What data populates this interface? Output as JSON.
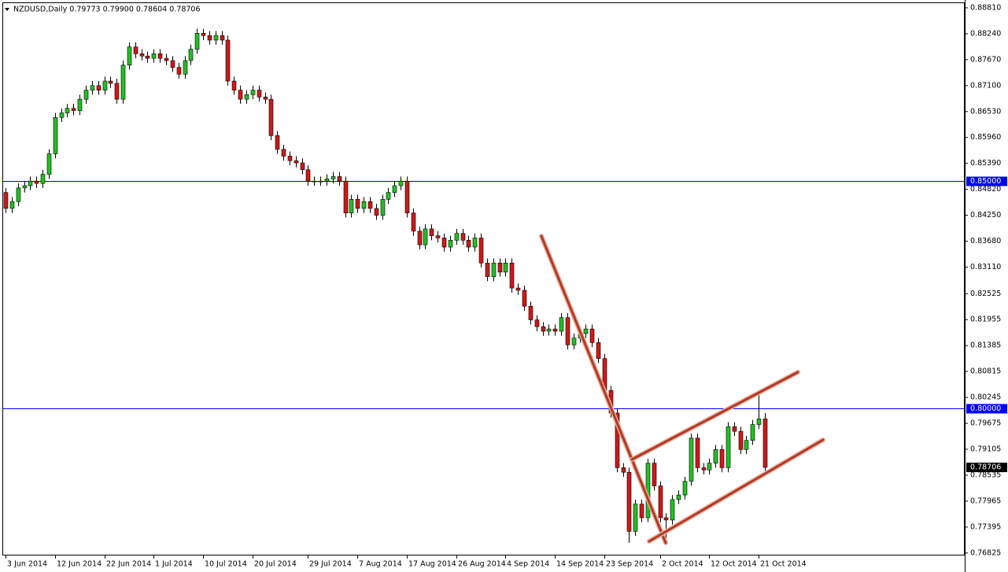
{
  "chart_data": {
    "type": "candlestick",
    "title": "NZDUSD,Daily  0.79773 0.79900 0.78604 0.78706",
    "categories": [
      "3 Jun 2014",
      null,
      null,
      null,
      null,
      null,
      null,
      null,
      "12 Jun 2014",
      null,
      null,
      null,
      null,
      null,
      null,
      null,
      "22 Jun 2014",
      null,
      null,
      null,
      null,
      null,
      null,
      null,
      "1 Jul 2014",
      null,
      null,
      null,
      null,
      null,
      null,
      null,
      "10 Jul 2014",
      null,
      null,
      null,
      null,
      null,
      null,
      null,
      "20 Jul 2014",
      null,
      null,
      null,
      null,
      null,
      null,
      null,
      null,
      "29 Jul 2014",
      null,
      null,
      null,
      null,
      null,
      null,
      null,
      "7 Aug 2014",
      null,
      null,
      null,
      null,
      null,
      null,
      null,
      "17 Aug 2014",
      null,
      null,
      null,
      null,
      null,
      null,
      null,
      "26 Aug 2014",
      null,
      null,
      null,
      null,
      null,
      null,
      null,
      "4 Sep 2014",
      null,
      null,
      null,
      null,
      null,
      null,
      null,
      "14 Sep 2014",
      null,
      null,
      null,
      null,
      null,
      null,
      null,
      "23 Sep 2014",
      null,
      null,
      null,
      null,
      null,
      null,
      null,
      null,
      "2 Oct 2014",
      null,
      null,
      null,
      null,
      null,
      null,
      null,
      "12 Oct 2014",
      null,
      null,
      null,
      null,
      null,
      null,
      null,
      "21 Oct 2014",
      null
    ],
    "open": [
      0.8475,
      0.844,
      0.8455,
      0.8485,
      0.849,
      0.85,
      0.8495,
      0.8515,
      0.856,
      0.864,
      0.865,
      0.866,
      0.8655,
      0.868,
      0.87,
      0.871,
      0.87,
      0.872,
      0.8715,
      0.868,
      0.8755,
      0.8795,
      0.878,
      0.8775,
      0.877,
      0.878,
      0.877,
      0.8765,
      0.875,
      0.8735,
      0.8765,
      0.879,
      0.8825,
      0.882,
      0.881,
      0.882,
      0.881,
      0.872,
      0.87,
      0.868,
      0.869,
      0.87,
      0.8685,
      0.868,
      0.86,
      0.857,
      0.8555,
      0.8545,
      0.854,
      0.8525,
      0.85,
      0.85,
      0.85,
      0.8505,
      0.851,
      0.85,
      0.843,
      0.846,
      0.844,
      0.8455,
      0.844,
      0.8425,
      0.846,
      0.8475,
      0.849,
      0.85,
      0.843,
      0.839,
      0.836,
      0.8395,
      0.838,
      0.8375,
      0.8355,
      0.837,
      0.8385,
      0.837,
      0.8355,
      0.8375,
      0.832,
      0.829,
      0.832,
      0.83,
      0.832,
      0.8265,
      0.826,
      0.8225,
      0.8195,
      0.818,
      0.817,
      0.8175,
      0.817,
      0.82,
      0.814,
      0.8155,
      0.8165,
      0.8175,
      0.8145,
      0.811,
      0.804,
      0.799,
      0.787,
      0.786,
      0.773,
      0.779,
      0.776,
      0.788,
      0.783,
      0.776,
      0.7755,
      0.78,
      0.781,
      0.784,
      0.7935,
      0.787,
      0.7865,
      0.788,
      0.791,
      0.787,
      0.796,
      0.795,
      0.791,
      0.793,
      0.7965,
      0.79773
    ],
    "high": [
      0.8485,
      0.8465,
      0.8495,
      0.85,
      0.851,
      0.851,
      0.8525,
      0.857,
      0.865,
      0.866,
      0.867,
      0.867,
      0.869,
      0.871,
      0.872,
      0.872,
      0.873,
      0.873,
      0.8725,
      0.8765,
      0.8805,
      0.8805,
      0.879,
      0.8785,
      0.879,
      0.879,
      0.878,
      0.8775,
      0.876,
      0.8775,
      0.88,
      0.8835,
      0.8835,
      0.883,
      0.883,
      0.883,
      0.882,
      0.873,
      0.871,
      0.87,
      0.871,
      0.871,
      0.8695,
      0.869,
      0.861,
      0.858,
      0.8565,
      0.8555,
      0.855,
      0.8535,
      0.851,
      0.851,
      0.8515,
      0.852,
      0.852,
      0.851,
      0.847,
      0.847,
      0.8465,
      0.8465,
      0.845,
      0.847,
      0.8485,
      0.85,
      0.851,
      0.851,
      0.844,
      0.84,
      0.8405,
      0.8405,
      0.839,
      0.8385,
      0.838,
      0.8395,
      0.8395,
      0.838,
      0.8385,
      0.8385,
      0.833,
      0.833,
      0.833,
      0.833,
      0.833,
      0.8275,
      0.827,
      0.8235,
      0.8205,
      0.819,
      0.8185,
      0.8185,
      0.821,
      0.821,
      0.8165,
      0.8175,
      0.8185,
      0.8185,
      0.8155,
      0.812,
      0.805,
      0.8,
      0.788,
      0.787,
      0.78,
      0.78,
      0.789,
      0.789,
      0.784,
      0.777,
      0.781,
      0.782,
      0.785,
      0.7945,
      0.7945,
      0.788,
      0.789,
      0.792,
      0.792,
      0.797,
      0.797,
      0.796,
      0.794,
      0.7975,
      0.8033,
      0.799
    ],
    "low": [
      0.843,
      0.843,
      0.8445,
      0.8475,
      0.848,
      0.8485,
      0.8485,
      0.8505,
      0.855,
      0.863,
      0.864,
      0.8645,
      0.8645,
      0.867,
      0.869,
      0.869,
      0.869,
      0.8705,
      0.867,
      0.867,
      0.8745,
      0.877,
      0.8765,
      0.876,
      0.876,
      0.876,
      0.8755,
      0.874,
      0.8725,
      0.8725,
      0.8755,
      0.878,
      0.881,
      0.88,
      0.88,
      0.88,
      0.871,
      0.869,
      0.867,
      0.867,
      0.868,
      0.8675,
      0.867,
      0.859,
      0.856,
      0.8545,
      0.8535,
      0.853,
      0.8515,
      0.849,
      0.849,
      0.849,
      0.849,
      0.8495,
      0.849,
      0.842,
      0.842,
      0.843,
      0.843,
      0.843,
      0.8415,
      0.8415,
      0.845,
      0.8465,
      0.848,
      0.842,
      0.838,
      0.835,
      0.835,
      0.837,
      0.8365,
      0.8345,
      0.8345,
      0.836,
      0.836,
      0.8345,
      0.8345,
      0.831,
      0.828,
      0.828,
      0.829,
      0.829,
      0.8255,
      0.825,
      0.8215,
      0.8185,
      0.817,
      0.816,
      0.816,
      0.816,
      0.816,
      0.813,
      0.813,
      0.8145,
      0.8155,
      0.8135,
      0.81,
      0.803,
      0.798,
      0.786,
      0.785,
      0.7705,
      0.772,
      0.775,
      0.775,
      0.782,
      0.775,
      0.7715,
      0.7745,
      0.779,
      0.78,
      0.783,
      0.786,
      0.7855,
      0.7855,
      0.787,
      0.786,
      0.786,
      0.794,
      0.79,
      0.79,
      0.792,
      0.7955,
      0.78604
    ],
    "close": [
      0.844,
      0.8455,
      0.8485,
      0.849,
      0.85,
      0.8495,
      0.8515,
      0.856,
      0.864,
      0.865,
      0.866,
      0.8655,
      0.868,
      0.87,
      0.871,
      0.87,
      0.872,
      0.8715,
      0.868,
      0.8755,
      0.8795,
      0.878,
      0.8775,
      0.877,
      0.878,
      0.877,
      0.8765,
      0.875,
      0.8735,
      0.8765,
      0.879,
      0.8825,
      0.882,
      0.881,
      0.882,
      0.881,
      0.872,
      0.87,
      0.868,
      0.869,
      0.87,
      0.8685,
      0.868,
      0.86,
      0.857,
      0.8555,
      0.8545,
      0.854,
      0.8525,
      0.85,
      0.85,
      0.85,
      0.8505,
      0.851,
      0.85,
      0.843,
      0.846,
      0.844,
      0.8455,
      0.844,
      0.8425,
      0.846,
      0.8475,
      0.849,
      0.85,
      0.843,
      0.839,
      0.836,
      0.8395,
      0.838,
      0.8375,
      0.8355,
      0.837,
      0.8385,
      0.837,
      0.8355,
      0.8375,
      0.832,
      0.829,
      0.832,
      0.83,
      0.832,
      0.8265,
      0.826,
      0.8225,
      0.8195,
      0.818,
      0.817,
      0.8175,
      0.817,
      0.82,
      0.814,
      0.8155,
      0.8165,
      0.8175,
      0.8145,
      0.811,
      0.804,
      0.799,
      0.787,
      0.786,
      0.773,
      0.779,
      0.776,
      0.788,
      0.783,
      0.776,
      0.7755,
      0.78,
      0.781,
      0.784,
      0.7935,
      0.787,
      0.7865,
      0.788,
      0.791,
      0.787,
      0.796,
      0.795,
      0.791,
      0.793,
      0.7965,
      0.79773,
      0.78706
    ],
    "up_color": "#22c022",
    "down_color": "#d01818",
    "wick_color": "#000000",
    "ylim": [
      0.7677,
      0.8893
    ],
    "yticks": [
      {
        "value": 0.8881,
        "label": "0.88810"
      },
      {
        "value": 0.8824,
        "label": "0.88240"
      },
      {
        "value": 0.8767,
        "label": "0.87670"
      },
      {
        "value": 0.871,
        "label": "0.87100"
      },
      {
        "value": 0.8653,
        "label": "0.86530"
      },
      {
        "value": 0.8596,
        "label": "0.85960"
      },
      {
        "value": 0.8539,
        "label": "0.85390"
      },
      {
        "value": 0.8482,
        "label": "0.84820"
      },
      {
        "value": 0.8425,
        "label": "0.84250"
      },
      {
        "value": 0.8368,
        "label": "0.83680"
      },
      {
        "value": 0.8311,
        "label": "0.83110"
      },
      {
        "value": 0.82525,
        "label": "0.82525"
      },
      {
        "value": 0.81955,
        "label": "0.81955"
      },
      {
        "value": 0.81385,
        "label": "0.81385"
      },
      {
        "value": 0.80815,
        "label": "0.80815"
      },
      {
        "value": 0.80245,
        "label": "0.80245"
      },
      {
        "value": 0.79675,
        "label": "0.79675"
      },
      {
        "value": 0.79105,
        "label": "0.79105"
      },
      {
        "value": 0.78535,
        "label": "0.78535"
      },
      {
        "value": 0.77965,
        "label": "0.77965"
      },
      {
        "value": 0.77395,
        "label": "0.77395"
      },
      {
        "value": 0.76825,
        "label": "0.76825"
      }
    ],
    "hlines": [
      {
        "value": 0.85,
        "label": "0.85000"
      },
      {
        "value": 0.8,
        "label": "0.80000"
      }
    ],
    "hline_color": "#0000ff",
    "last_price": {
      "value": 0.78706,
      "label": "0.78706"
    }
  }
}
